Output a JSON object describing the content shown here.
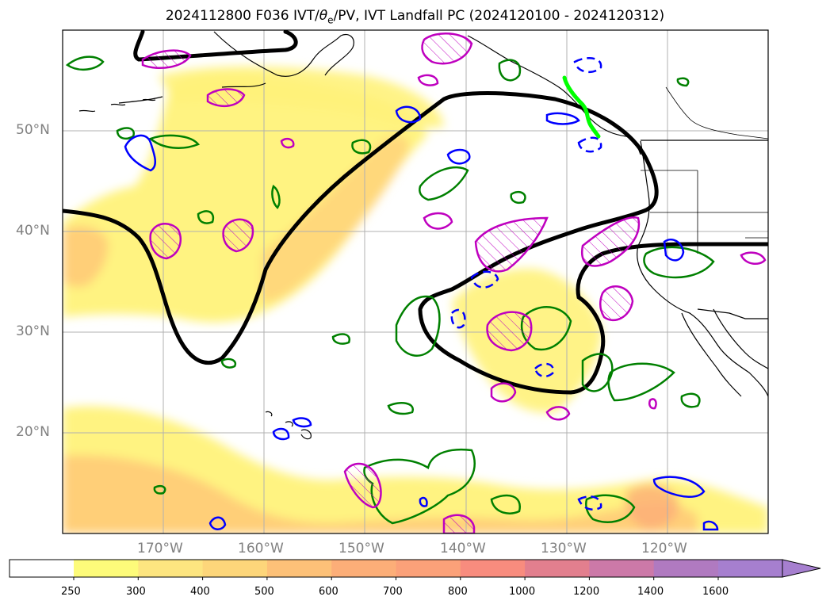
{
  "title": {
    "prefix": "2024112800 F036 IVT/",
    "theta": "θ",
    "theta_sub": "e",
    "suffix": "/PV, IVT Landfall PC (2024120100 - 2024120312)"
  },
  "map": {
    "lat_labels": [
      "50°N",
      "40°N",
      "30°N",
      "20°N"
    ],
    "lon_labels": [
      "170°W",
      "160°W",
      "150°W",
      "140°W",
      "130°W",
      "120°W"
    ],
    "grid": true,
    "colors": {
      "ivt_shading": "#ffe082",
      "ivt_core": "#ffb870",
      "landfall_pc_contour": "#000000",
      "theta_e_contour": "#008000",
      "pv_positive_contour": "#bf00bf",
      "pv_negative_contour": "#0000ff",
      "landfall_segment": "#00ff00"
    }
  },
  "colorbar": {
    "ticks": [
      "250",
      "300",
      "400",
      "500",
      "600",
      "700",
      "800",
      "1000",
      "1200",
      "1400",
      "1600"
    ],
    "colors": [
      "#ffffff",
      "#fdfb7a",
      "#fde580",
      "#fdd67a",
      "#fdc178",
      "#fcae78",
      "#fba179",
      "#f88c7e",
      "#e27f8e",
      "#cc79a8",
      "#b07ac0",
      "#a67fcf"
    ],
    "extend": "max"
  }
}
